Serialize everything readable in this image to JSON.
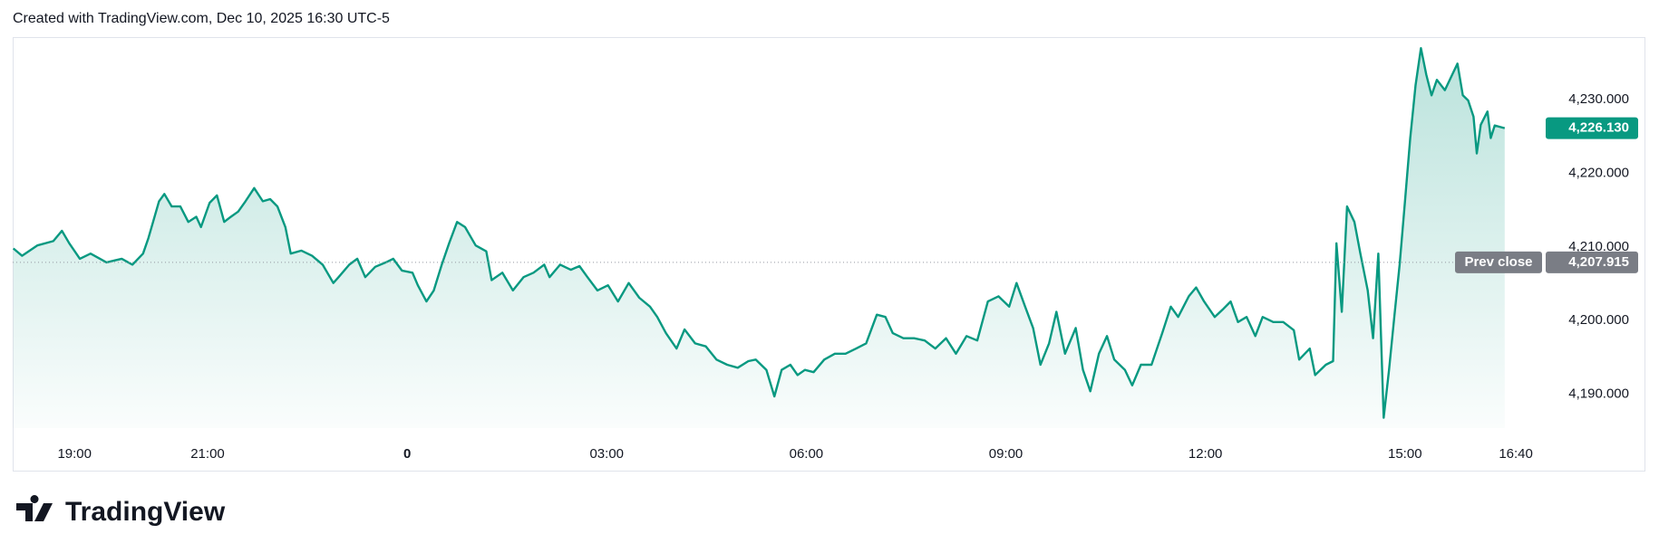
{
  "header": {
    "text": "Created with TradingView.com, Dec 10, 2025 16:30 UTC-5"
  },
  "footer": {
    "brand": "TradingView"
  },
  "chart_data": {
    "type": "line",
    "color": "#089981",
    "x": [
      -5.92,
      -5.79,
      -5.56,
      -5.32,
      -5.19,
      -5.08,
      -4.92,
      -4.76,
      -4.52,
      -4.29,
      -4.13,
      -3.97,
      -3.89,
      -3.73,
      -3.65,
      -3.54,
      -3.41,
      -3.29,
      -3.17,
      -3.1,
      -2.97,
      -2.86,
      -2.75,
      -2.65,
      -2.54,
      -2.43,
      -2.3,
      -2.17,
      -2.06,
      -1.95,
      -1.83,
      -1.75,
      -1.59,
      -1.43,
      -1.27,
      -1.11,
      -1.03,
      -0.87,
      -0.75,
      -0.63,
      -0.48,
      -0.32,
      -0.21,
      -0.08,
      0.08,
      0.16,
      0.29,
      0.4,
      0.52,
      0.63,
      0.75,
      0.87,
      1.03,
      1.19,
      1.27,
      1.43,
      1.59,
      1.75,
      1.9,
      2.06,
      2.14,
      2.3,
      2.46,
      2.59,
      2.71,
      2.86,
      3.02,
      3.17,
      3.33,
      3.49,
      3.65,
      3.76,
      3.89,
      4.05,
      4.17,
      4.33,
      4.49,
      4.65,
      4.81,
      4.97,
      5.13,
      5.24,
      5.4,
      5.52,
      5.63,
      5.76,
      5.87,
      5.98,
      6.11,
      6.27,
      6.43,
      6.59,
      6.75,
      6.9,
      7.06,
      7.19,
      7.3,
      7.46,
      7.62,
      7.78,
      7.94,
      8.1,
      8.25,
      8.41,
      8.57,
      8.73,
      8.89,
      9.05,
      9.16,
      9.29,
      9.41,
      9.52,
      9.65,
      9.76,
      9.89,
      10.05,
      10.16,
      10.27,
      10.4,
      10.52,
      10.63,
      10.79,
      10.9,
      11.03,
      11.19,
      11.35,
      11.48,
      11.59,
      11.75,
      11.86,
      11.98,
      12.14,
      12.27,
      12.38,
      12.49,
      12.62,
      12.75,
      12.86,
      13.02,
      13.17,
      13.33,
      13.41,
      13.57,
      13.65,
      13.81,
      13.92,
      13.97,
      14.05,
      14.13,
      14.24,
      14.33,
      14.44,
      14.52,
      14.6,
      14.68,
      14.76,
      14.84,
      14.92,
      15.0,
      15.08,
      15.16,
      15.24,
      15.32,
      15.4,
      15.48,
      15.6,
      15.71,
      15.79,
      15.87,
      15.95,
      16.03,
      16.08,
      16.14,
      16.24,
      16.29,
      16.35,
      16.5
    ],
    "values": [
      4209.8,
      4208.8,
      4210.2,
      4210.8,
      4212.2,
      4210.5,
      4208.4,
      4209.1,
      4207.9,
      4208.4,
      4207.6,
      4209.1,
      4211.2,
      4216.2,
      4217.2,
      4215.5,
      4215.5,
      4213.4,
      4214.1,
      4212.7,
      4216.0,
      4217.0,
      4213.4,
      4214.1,
      4214.8,
      4216.2,
      4218.0,
      4216.2,
      4216.5,
      4215.5,
      4212.7,
      4209.1,
      4209.5,
      4208.8,
      4207.6,
      4205.1,
      4205.9,
      4207.6,
      4208.4,
      4205.9,
      4207.3,
      4207.9,
      4208.4,
      4206.8,
      4206.5,
      4204.8,
      4202.6,
      4204.1,
      4207.6,
      4210.5,
      4213.4,
      4212.7,
      4210.2,
      4209.4,
      4205.5,
      4206.5,
      4204.1,
      4205.9,
      4206.5,
      4207.6,
      4205.9,
      4207.6,
      4206.9,
      4207.4,
      4205.9,
      4204.1,
      4204.8,
      4202.6,
      4205.1,
      4203.1,
      4201.9,
      4200.5,
      4198.3,
      4196.2,
      4198.8,
      4196.9,
      4196.5,
      4194.7,
      4194.0,
      4193.6,
      4194.5,
      4194.7,
      4193.3,
      4189.7,
      4193.3,
      4194.0,
      4192.6,
      4193.3,
      4193.0,
      4194.7,
      4195.5,
      4195.5,
      4196.2,
      4196.9,
      4200.8,
      4200.5,
      4198.3,
      4197.6,
      4197.6,
      4197.3,
      4196.2,
      4197.6,
      4195.5,
      4197.9,
      4197.3,
      4202.6,
      4203.3,
      4201.9,
      4205.1,
      4201.9,
      4199.0,
      4194.0,
      4196.9,
      4201.2,
      4195.5,
      4199.0,
      4193.3,
      4190.4,
      4195.5,
      4197.9,
      4194.7,
      4193.3,
      4191.2,
      4194.0,
      4194.0,
      4198.3,
      4201.9,
      4200.5,
      4203.3,
      4204.5,
      4202.6,
      4200.5,
      4201.6,
      4202.6,
      4199.8,
      4200.5,
      4197.9,
      4200.5,
      4199.8,
      4199.8,
      4198.7,
      4194.7,
      4196.2,
      4192.6,
      4194.0,
      4194.5,
      4210.5,
      4201.2,
      4215.5,
      4213.4,
      4209.1,
      4204.1,
      4197.6,
      4209.1,
      4186.8,
      4193.3,
      4200.5,
      4207.6,
      4216.2,
      4224.8,
      4232.0,
      4237.0,
      4233.4,
      4230.6,
      4232.7,
      4231.3,
      4233.4,
      4234.9,
      4230.6,
      4229.9,
      4227.7,
      4222.7,
      4226.6,
      4228.4,
      4224.8,
      4226.5,
      4226.13
    ],
    "xlim": [
      -5.93,
      17.02
    ],
    "xticks": [
      {
        "value": -5,
        "label": "19:00"
      },
      {
        "value": -3,
        "label": "21:00"
      },
      0,
      {
        "value": 3,
        "label": "03:00"
      },
      {
        "value": 6,
        "label": "06:00"
      },
      {
        "value": 9,
        "label": "09:00"
      },
      {
        "value": 12,
        "label": "12:00"
      },
      {
        "value": 15,
        "label": "15:00"
      },
      {
        "value": 16.667,
        "label": "16:40"
      }
    ],
    "ylim": [
      4185.4,
      4238.5
    ],
    "yticks": [
      {
        "value": 4190,
        "label": "4,190.000"
      },
      {
        "value": 4200,
        "label": "4,200.000"
      },
      {
        "value": 4210,
        "label": "4,210.000"
      },
      {
        "value": 4220,
        "label": "4,220.000"
      },
      {
        "value": 4230,
        "label": "4,230.000"
      }
    ],
    "last_price": {
      "value": 4226.13,
      "label": "4,226.130"
    },
    "prev_close": {
      "name": "Prev close",
      "value": 4207.915,
      "label": "4,207.915"
    }
  }
}
